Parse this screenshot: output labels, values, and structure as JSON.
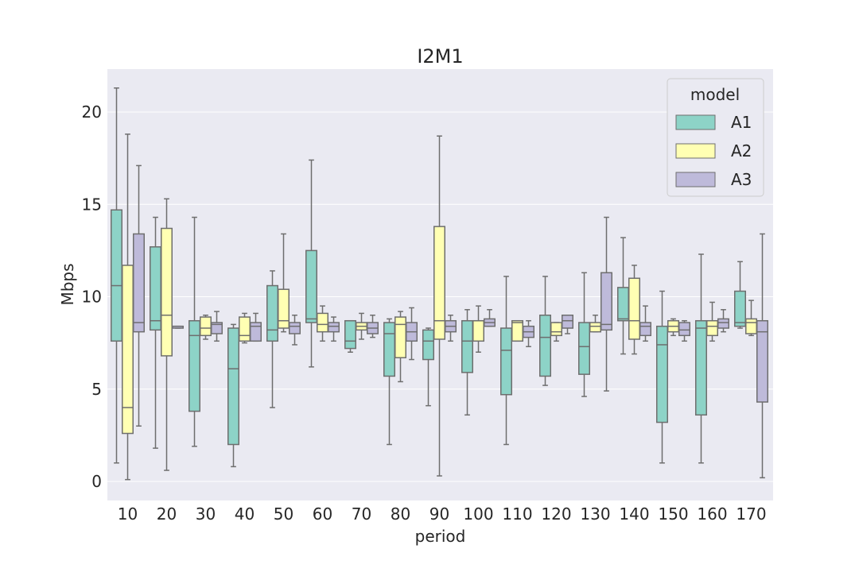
{
  "chart_data": {
    "type": "box",
    "title": "I2M1",
    "xlabel": "period",
    "ylabel": "Mbps",
    "ylim": [
      -1,
      22.3
    ],
    "yticks": [
      0,
      5,
      10,
      15,
      20
    ],
    "grid": true,
    "legend": {
      "title": "model",
      "placement": "top-right"
    },
    "categories": [
      "10",
      "20",
      "30",
      "40",
      "50",
      "60",
      "70",
      "80",
      "90",
      "100",
      "110",
      "120",
      "130",
      "140",
      "150",
      "160",
      "170"
    ],
    "series": [
      {
        "name": "A1",
        "color": "#8dd3c7",
        "boxes": [
          {
            "min": 1.0,
            "q1": 7.6,
            "median": 10.6,
            "q3": 14.7,
            "max": 21.3
          },
          {
            "min": 1.8,
            "q1": 8.2,
            "median": 8.7,
            "q3": 12.7,
            "max": 14.3
          },
          {
            "min": 1.9,
            "q1": 3.8,
            "median": 7.9,
            "q3": 8.7,
            "max": 14.3
          },
          {
            "min": 0.8,
            "q1": 2.0,
            "median": 6.1,
            "q3": 8.3,
            "max": 8.5
          },
          {
            "min": 4.0,
            "q1": 7.6,
            "median": 8.2,
            "q3": 10.6,
            "max": 11.4
          },
          {
            "min": 6.2,
            "q1": 8.6,
            "median": 8.8,
            "q3": 12.5,
            "max": 17.4
          },
          {
            "min": 7.0,
            "q1": 7.2,
            "median": 7.6,
            "q3": 8.7,
            "max": 8.7
          },
          {
            "min": 2.0,
            "q1": 5.7,
            "median": 8.0,
            "q3": 8.6,
            "max": 8.8
          },
          {
            "min": 4.1,
            "q1": 6.6,
            "median": 7.6,
            "q3": 8.2,
            "max": 8.3
          },
          {
            "min": 3.6,
            "q1": 5.9,
            "median": 7.6,
            "q3": 8.7,
            "max": 9.3
          },
          {
            "min": 2.0,
            "q1": 4.7,
            "median": 7.1,
            "q3": 8.3,
            "max": 11.1
          },
          {
            "min": 5.2,
            "q1": 5.7,
            "median": 7.8,
            "q3": 9.0,
            "max": 11.1
          },
          {
            "min": 4.6,
            "q1": 5.8,
            "median": 7.3,
            "q3": 8.6,
            "max": 11.3
          },
          {
            "min": 6.9,
            "q1": 8.7,
            "median": 8.8,
            "q3": 10.5,
            "max": 13.2
          },
          {
            "min": 1.0,
            "q1": 3.2,
            "median": 7.4,
            "q3": 8.4,
            "max": 10.3
          },
          {
            "min": 1.0,
            "q1": 3.6,
            "median": 8.3,
            "q3": 8.7,
            "max": 12.3
          },
          {
            "min": 8.3,
            "q1": 8.4,
            "median": 8.6,
            "q3": 10.3,
            "max": 11.9
          }
        ]
      },
      {
        "name": "A2",
        "color": "#ffffb3",
        "boxes": [
          {
            "min": 0.1,
            "q1": 2.6,
            "median": 4.0,
            "q3": 11.7,
            "max": 18.8
          },
          {
            "min": 0.6,
            "q1": 6.8,
            "median": 9.0,
            "q3": 13.7,
            "max": 15.3
          },
          {
            "min": 7.7,
            "q1": 7.9,
            "median": 8.3,
            "q3": 8.9,
            "max": 9.0
          },
          {
            "min": 7.5,
            "q1": 7.6,
            "median": 7.9,
            "q3": 8.9,
            "max": 9.1
          },
          {
            "min": 8.1,
            "q1": 8.3,
            "median": 8.7,
            "q3": 10.4,
            "max": 13.4
          },
          {
            "min": 7.6,
            "q1": 8.1,
            "median": 8.5,
            "q3": 9.1,
            "max": 9.5
          },
          {
            "min": 7.7,
            "q1": 8.2,
            "median": 8.4,
            "q3": 8.6,
            "max": 9.1
          },
          {
            "min": 5.4,
            "q1": 6.7,
            "median": 8.5,
            "q3": 8.9,
            "max": 9.2
          },
          {
            "min": 0.3,
            "q1": 7.7,
            "median": 8.7,
            "q3": 13.8,
            "max": 18.7
          },
          {
            "min": 7.0,
            "q1": 7.6,
            "median": 8.7,
            "q3": 8.7,
            "max": 9.5
          },
          {
            "min": 7.6,
            "q1": 7.6,
            "median": 8.6,
            "q3": 8.7,
            "max": 8.7
          },
          {
            "min": 7.6,
            "q1": 7.9,
            "median": 8.1,
            "q3": 8.6,
            "max": 8.6
          },
          {
            "min": 8.1,
            "q1": 8.1,
            "median": 8.4,
            "q3": 8.6,
            "max": 9.0
          },
          {
            "min": 6.9,
            "q1": 7.7,
            "median": 8.7,
            "q3": 11.0,
            "max": 11.7
          },
          {
            "min": 7.9,
            "q1": 8.1,
            "median": 8.4,
            "q3": 8.7,
            "max": 8.8
          },
          {
            "min": 7.6,
            "q1": 7.9,
            "median": 8.4,
            "q3": 8.7,
            "max": 9.7
          },
          {
            "min": 7.9,
            "q1": 8.0,
            "median": 8.6,
            "q3": 8.8,
            "max": 9.8
          }
        ]
      },
      {
        "name": "A3",
        "color": "#bebada",
        "boxes": [
          {
            "min": 3.0,
            "q1": 8.1,
            "median": 8.6,
            "q3": 13.4,
            "max": 17.1
          },
          {
            "min": 8.3,
            "q1": 8.3,
            "median": 8.4,
            "q3": 8.4,
            "max": 8.4
          },
          {
            "min": 7.6,
            "q1": 8.0,
            "median": 8.5,
            "q3": 8.6,
            "max": 9.2
          },
          {
            "min": 7.6,
            "q1": 7.6,
            "median": 8.4,
            "q3": 8.6,
            "max": 9.1
          },
          {
            "min": 7.4,
            "q1": 8.0,
            "median": 8.4,
            "q3": 8.6,
            "max": 9.0
          },
          {
            "min": 7.6,
            "q1": 8.1,
            "median": 8.4,
            "q3": 8.6,
            "max": 8.9
          },
          {
            "min": 7.8,
            "q1": 8.0,
            "median": 8.3,
            "q3": 8.6,
            "max": 9.0
          },
          {
            "min": 6.6,
            "q1": 7.6,
            "median": 8.1,
            "q3": 8.6,
            "max": 9.4
          },
          {
            "min": 7.6,
            "q1": 8.1,
            "median": 8.4,
            "q3": 8.7,
            "max": 9.0
          },
          {
            "min": 8.4,
            "q1": 8.4,
            "median": 8.6,
            "q3": 8.8,
            "max": 9.3
          },
          {
            "min": 7.3,
            "q1": 7.8,
            "median": 8.1,
            "q3": 8.4,
            "max": 8.7
          },
          {
            "min": 8.0,
            "q1": 8.3,
            "median": 8.7,
            "q3": 9.0,
            "max": 9.0
          },
          {
            "min": 4.9,
            "q1": 8.2,
            "median": 8.5,
            "q3": 11.3,
            "max": 14.3
          },
          {
            "min": 7.6,
            "q1": 7.9,
            "median": 8.4,
            "q3": 8.6,
            "max": 9.5
          },
          {
            "min": 7.6,
            "q1": 7.9,
            "median": 8.2,
            "q3": 8.6,
            "max": 8.7
          },
          {
            "min": 8.1,
            "q1": 8.3,
            "median": 8.6,
            "q3": 8.8,
            "max": 9.3
          },
          {
            "min": 0.2,
            "q1": 4.3,
            "median": 8.1,
            "q3": 8.7,
            "max": 13.4
          }
        ]
      }
    ]
  }
}
